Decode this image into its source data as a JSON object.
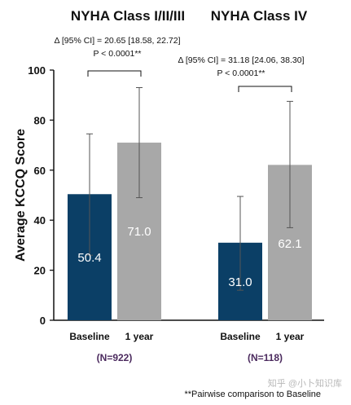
{
  "chart_data": {
    "type": "bar",
    "ylabel": "Average KCCQ Score",
    "ylim": [
      0,
      100
    ],
    "yticks": [
      0,
      20,
      40,
      60,
      80,
      100
    ],
    "categories": [
      "Baseline",
      "1 year"
    ],
    "colors": {
      "Baseline": "#0b3f66",
      "1 year": "#a8a8a8"
    },
    "grid": false,
    "groups": [
      {
        "title": "NYHA Class I/II/III",
        "n_label": "(N=922)",
        "delta": "Δ [95% CI] = 20.65 [18.58, 22.72]",
        "p_value": "P < 0.0001**",
        "bars": [
          {
            "category": "Baseline",
            "value": 50.4,
            "label": "50.4",
            "err_low": 26,
            "err_high": 74.5
          },
          {
            "category": "1 year",
            "value": 71.0,
            "label": "71.0",
            "err_low": 49,
            "err_high": 93
          }
        ]
      },
      {
        "title": "NYHA Class IV",
        "n_label": "(N=118)",
        "delta": "Δ [95% CI] = 31.18 [24.06, 38.30]",
        "p_value": "P < 0.0001**",
        "bars": [
          {
            "category": "Baseline",
            "value": 31.0,
            "label": "31.0",
            "err_low": 12,
            "err_high": 49.5
          },
          {
            "category": "1 year",
            "value": 62.1,
            "label": "62.1",
            "err_low": 37,
            "err_high": 87.5
          }
        ]
      }
    ],
    "footnote": "**Pairwise comparison to Baseline"
  },
  "watermark": "知乎 @小卜知识库"
}
